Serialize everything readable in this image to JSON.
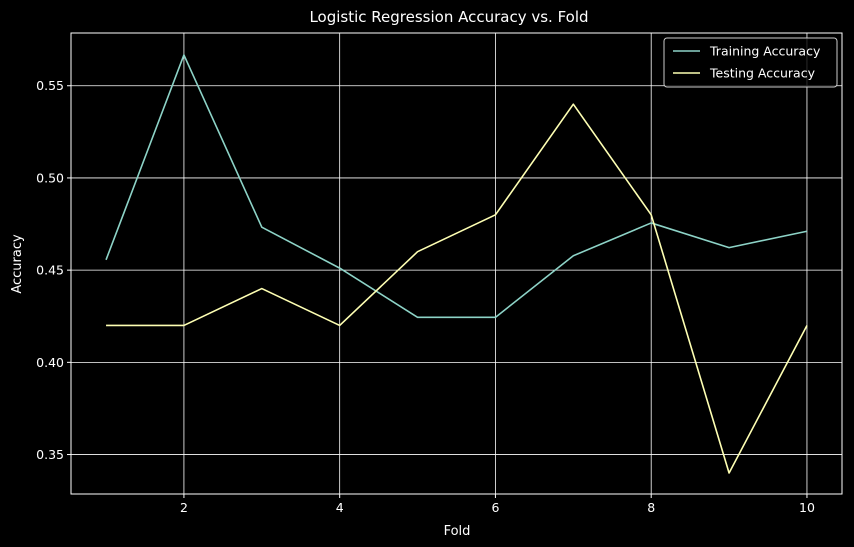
{
  "chart_data": {
    "type": "line",
    "title": "Logistic Regression Accuracy vs. Fold",
    "xlabel": "Fold",
    "ylabel": "Accuracy",
    "x": [
      1,
      2,
      3,
      4,
      5,
      6,
      7,
      8,
      9,
      10
    ],
    "xlim": [
      0.55,
      10.45
    ],
    "ylim": [
      0.3286,
      0.5786
    ],
    "xticks": [
      2,
      4,
      6,
      8,
      10
    ],
    "yticks": [
      0.35,
      0.4,
      0.45,
      0.5,
      0.55
    ],
    "xtick_labels": [
      "2",
      "4",
      "6",
      "8",
      "10"
    ],
    "ytick_labels": [
      "0.35",
      "0.40",
      "0.45",
      "0.50",
      "0.55"
    ],
    "grid": true,
    "legend_position": "top-right",
    "background": "#000000",
    "foreground": "#ffffff",
    "series": [
      {
        "name": "Training Accuracy",
        "color": "#8dd3c7",
        "values": [
          0.4556,
          0.5667,
          0.4733,
          0.4511,
          0.4244,
          0.4244,
          0.4578,
          0.4756,
          0.4622,
          0.4711
        ]
      },
      {
        "name": "Testing Accuracy",
        "color": "#feffb3",
        "values": [
          0.42,
          0.42,
          0.44,
          0.42,
          0.46,
          0.48,
          0.54,
          0.48,
          0.34,
          0.42
        ]
      }
    ]
  }
}
